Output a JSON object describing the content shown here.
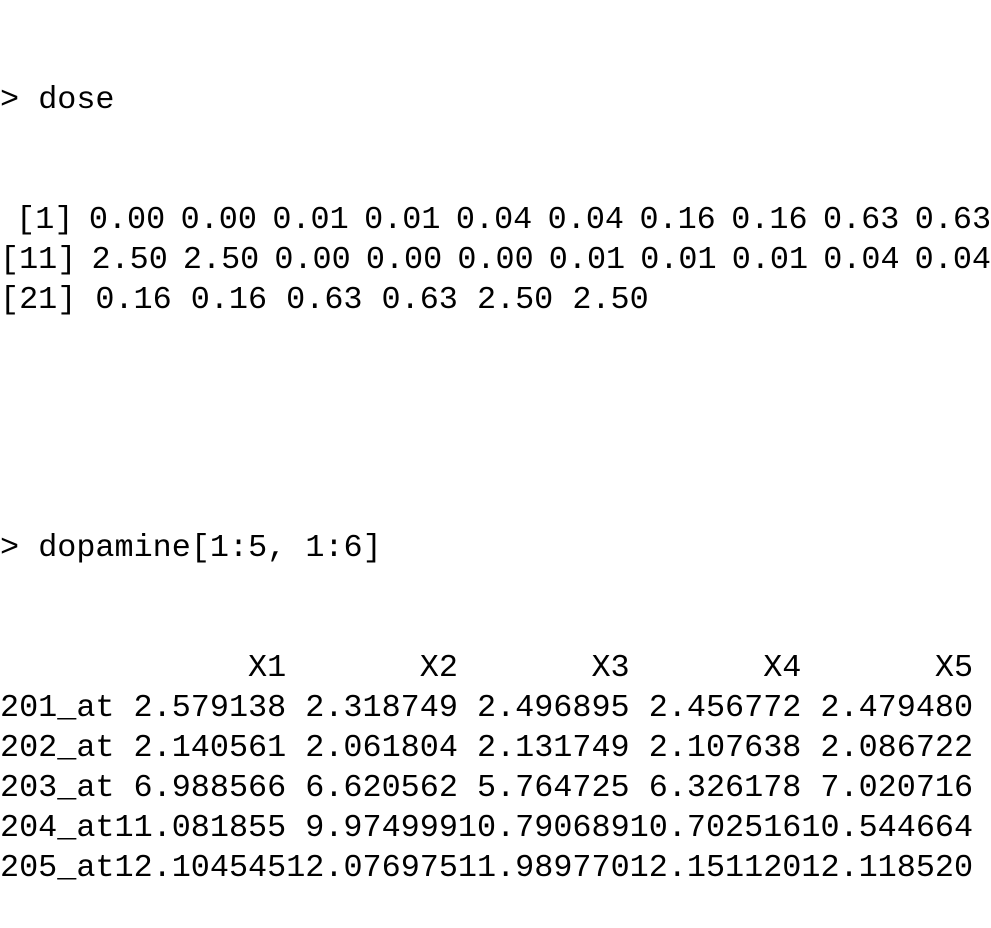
{
  "console": {
    "prompt": ">",
    "cmd1": "dose",
    "dose_rows": [
      {
        "index": "[1]",
        "values": [
          "0.00",
          "0.00",
          "0.01",
          "0.01",
          "0.04",
          "0.04",
          "0.16",
          "0.16",
          "0.63",
          "0.63"
        ]
      },
      {
        "index": "[11]",
        "values": [
          "2.50",
          "2.50",
          "0.00",
          "0.00",
          "0.00",
          "0.01",
          "0.01",
          "0.01",
          "0.04",
          "0.04"
        ]
      },
      {
        "index": "[21]",
        "values": [
          "0.16",
          "0.16",
          "0.63",
          "0.63",
          "2.50",
          "2.50"
        ]
      }
    ],
    "cmd2": "dopamine[1:5, 1:6]",
    "table": {
      "columns": [
        "X1",
        "X2",
        "X3",
        "X4",
        "X5"
      ],
      "rows": [
        {
          "name": "201_at",
          "values": [
            "2.579138",
            "2.318749",
            "2.496895",
            "2.456772",
            "2.479480"
          ]
        },
        {
          "name": "202_at",
          "values": [
            "2.140561",
            "2.061804",
            "2.131749",
            "2.107638",
            "2.086722"
          ]
        },
        {
          "name": "203_at",
          "values": [
            "6.988566",
            "6.620562",
            "5.764725",
            "6.326178",
            "7.020716"
          ]
        },
        {
          "name": "204_at",
          "values": [
            "11.081855",
            "9.974999",
            "10.790689",
            "10.702516",
            "10.544664"
          ]
        },
        {
          "name": "205_at",
          "values": [
            "12.104545",
            "12.076975",
            "11.989770",
            "12.151120",
            "12.118520"
          ]
        }
      ]
    }
  }
}
